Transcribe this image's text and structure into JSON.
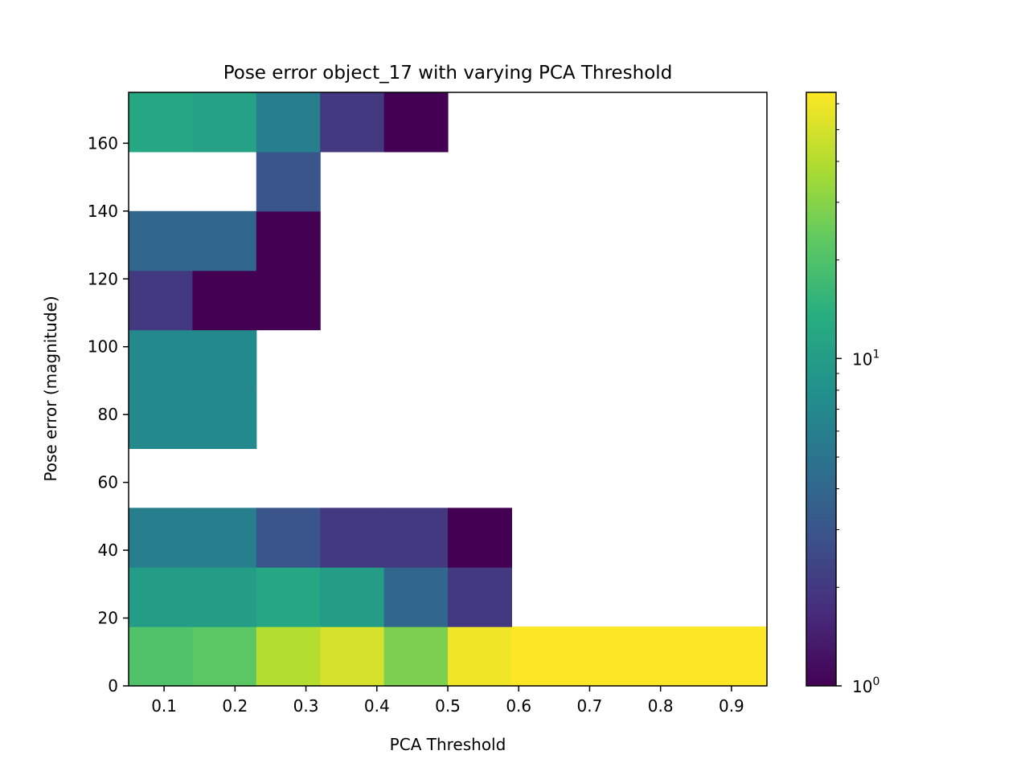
{
  "chart_data": {
    "type": "heatmap",
    "title": "Pose error object_17 with varying PCA Threshold",
    "xlabel": "PCA Threshold",
    "ylabel": "Pose error (magnitude)",
    "xlim": [
      0.05,
      0.95
    ],
    "ylim": [
      0,
      175
    ],
    "x_ticks": [
      "0.1",
      "0.2",
      "0.3",
      "0.4",
      "0.5",
      "0.6",
      "0.7",
      "0.8",
      "0.9"
    ],
    "y_ticks": [
      "0",
      "20",
      "40",
      "60",
      "80",
      "100",
      "120",
      "140",
      "160"
    ],
    "x_bin_edges": [
      0.05,
      0.14,
      0.23,
      0.32,
      0.41,
      0.5,
      0.59,
      0.68,
      0.77,
      0.86,
      0.95
    ],
    "y_bin_edges": [
      0,
      17.5,
      35,
      52.5,
      70,
      87.5,
      105,
      122.5,
      140,
      157.5,
      175
    ],
    "counts": [
      [
        20,
        22,
        40,
        50,
        28,
        60,
        65,
        65,
        65,
        65
      ],
      [
        10,
        10,
        12,
        10,
        4,
        2,
        0,
        0,
        0,
        0
      ],
      [
        6,
        6,
        3,
        2,
        2,
        1,
        0,
        0,
        0,
        0
      ],
      [
        0,
        0,
        0,
        0,
        0,
        0,
        0,
        0,
        0,
        0
      ],
      [
        7,
        7,
        0,
        0,
        0,
        0,
        0,
        0,
        0,
        0
      ],
      [
        7,
        7,
        0,
        0,
        0,
        0,
        0,
        0,
        0,
        0
      ],
      [
        2,
        1,
        1,
        0,
        0,
        0,
        0,
        0,
        0,
        0
      ],
      [
        4,
        4,
        1,
        0,
        0,
        0,
        0,
        0,
        0,
        0
      ],
      [
        0,
        0,
        3,
        0,
        0,
        0,
        0,
        0,
        0,
        0
      ],
      [
        12,
        11,
        6,
        2,
        1,
        0,
        0,
        0,
        0,
        0
      ]
    ],
    "colormap": "viridis",
    "color_scale": "log",
    "color_range": [
      1,
      65
    ],
    "colorbar_ticks": [
      {
        "value": 1,
        "base": "10",
        "exp": "0"
      },
      {
        "value": 10,
        "base": "10",
        "exp": "1"
      }
    ],
    "grid": false
  }
}
